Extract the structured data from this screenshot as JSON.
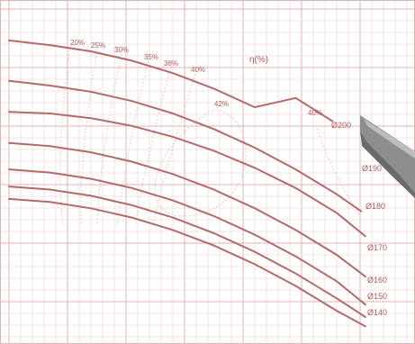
{
  "chart_data": {
    "type": "line",
    "title": "",
    "annotation_label": "η(%)",
    "xlabel": "",
    "ylabel": "",
    "x_range": [
      0,
      100
    ],
    "y_range": [
      0,
      100
    ],
    "grid": true,
    "legend": "none",
    "colors": {
      "curve": "#b36a6a",
      "grid_minor": "#f2dada",
      "grid_major": "#e3b3b3",
      "efficiency": "#eac9c9",
      "label": "#b05c5c",
      "blade": "#8a8a8a"
    },
    "series": [
      {
        "name": "Ø200",
        "x": [
          0,
          10,
          20,
          30,
          40,
          50,
          60,
          70,
          79
        ],
        "y": [
          89,
          87.5,
          85.5,
          82.5,
          78.5,
          73.5,
          67.5,
          70.5,
          63
        ]
      },
      {
        "name": "Ø190",
        "x": [
          0,
          10,
          20,
          30,
          40,
          50,
          60,
          70,
          80,
          86
        ],
        "y": [
          76,
          74.5,
          72.5,
          69.5,
          65.5,
          60.5,
          54.5,
          47.5,
          39.5,
          34
        ]
      },
      {
        "name": "Ø180",
        "x": [
          0,
          10,
          20,
          30,
          40,
          50,
          60,
          70,
          80,
          87
        ],
        "y": [
          66,
          65.5,
          64,
          61.5,
          58,
          53.5,
          48,
          41.5,
          33.5,
          26
        ]
      },
      {
        "name": "Ø170",
        "x": [
          0,
          10,
          20,
          30,
          40,
          50,
          60,
          70,
          80,
          87
        ],
        "y": [
          56,
          55,
          53,
          50,
          46,
          41,
          35,
          28,
          20,
          13
        ]
      },
      {
        "name": "Ø160",
        "x": [
          0,
          10,
          20,
          30,
          40,
          50,
          60,
          70,
          80,
          87
        ],
        "y": [
          47.5,
          46.5,
          44.5,
          41.5,
          37.5,
          32.5,
          26.5,
          19.5,
          11.5,
          4
        ]
      },
      {
        "name": "Ø150",
        "x": [
          0,
          10,
          20,
          30,
          40,
          50,
          60,
          70,
          80,
          87
        ],
        "y": [
          42,
          41,
          39,
          36,
          32,
          27,
          21,
          14,
          6,
          0
        ]
      },
      {
        "name": "Ø140",
        "x": [
          0,
          10,
          20,
          30,
          40,
          50,
          60,
          70,
          80,
          87
        ],
        "y": [
          38,
          37,
          35,
          32,
          28,
          23,
          17,
          10,
          2,
          -3
        ]
      }
    ],
    "efficiency_labels": [
      "20%",
      "25%",
      "30%",
      "35%",
      "38%",
      "40%",
      "42%",
      "40%"
    ]
  }
}
